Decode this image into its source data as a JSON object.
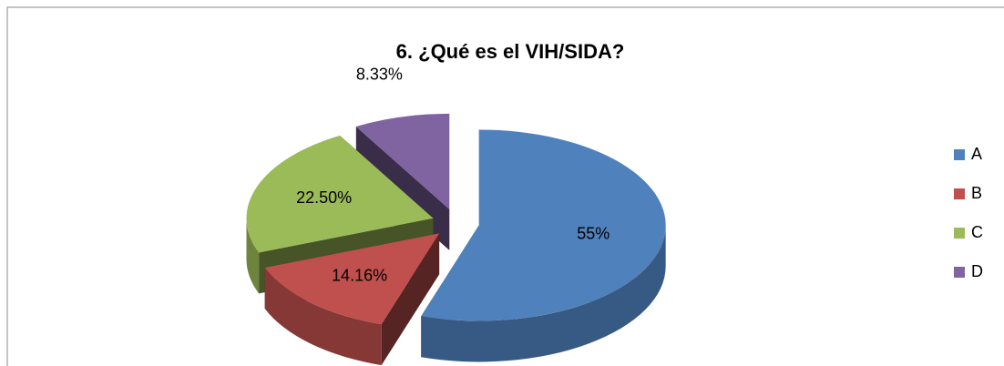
{
  "chart_data": {
    "type": "pie",
    "title": "6. ¿Qué es el VIH/SIDA?",
    "categories": [
      "A",
      "B",
      "C",
      "D"
    ],
    "values": [
      55,
      14.16,
      22.5,
      8.33
    ],
    "value_labels": [
      "55%",
      "14.16%",
      "22.50%",
      "8.33%"
    ],
    "colors": [
      "#4f81bd",
      "#c0504d",
      "#9bbb59",
      "#8064a2"
    ],
    "legend": "right"
  }
}
